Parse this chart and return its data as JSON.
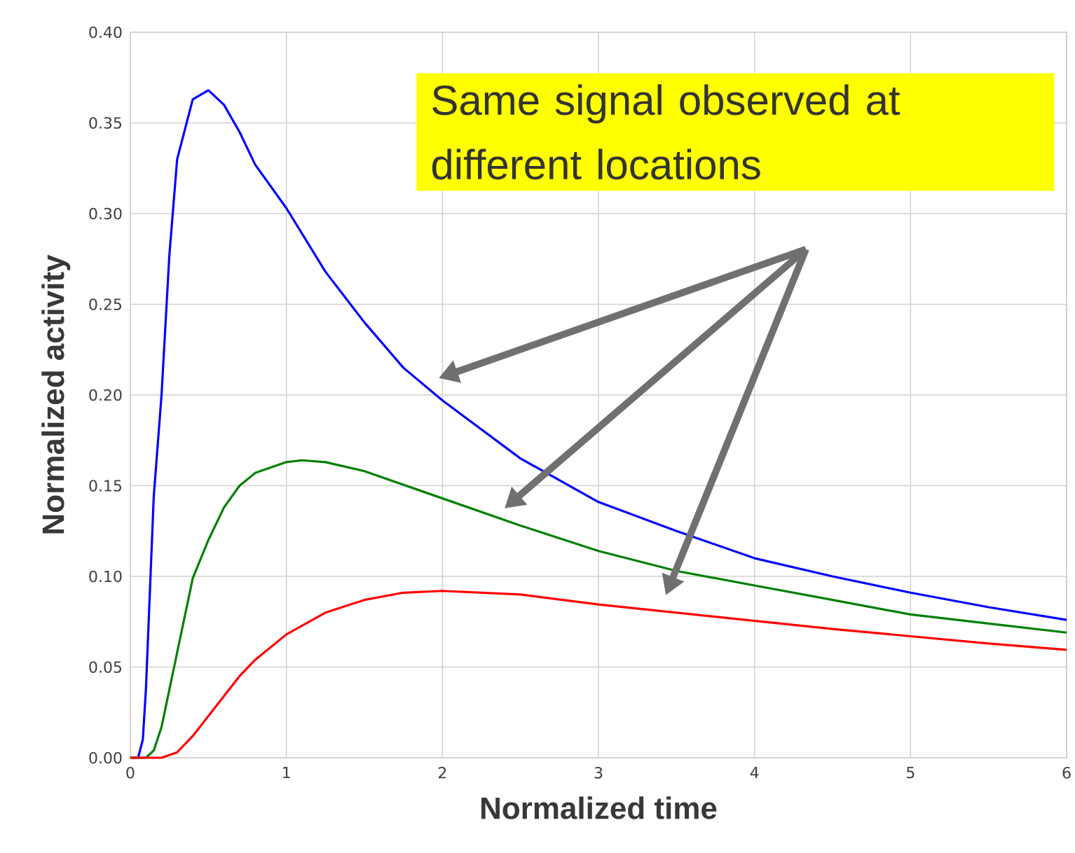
{
  "chart_data": {
    "type": "line",
    "xlabel": "Normalized time",
    "ylabel": "Normalized activity",
    "annotations": [
      "Same signal observed at different locations"
    ],
    "xlim": [
      0,
      6
    ],
    "ylim": [
      0,
      0.4
    ],
    "xticks": [
      0,
      1,
      2,
      3,
      4,
      5,
      6
    ],
    "yticks": [
      {
        "value": 0,
        "label": "0.00"
      },
      {
        "value": 0.05,
        "label": "0.05"
      },
      {
        "value": 0.1,
        "label": "0.10"
      },
      {
        "value": 0.15,
        "label": "0.15"
      },
      {
        "value": 0.2,
        "label": "0.20"
      },
      {
        "value": 0.25,
        "label": "0.25"
      },
      {
        "value": 0.3,
        "label": "0.30"
      },
      {
        "value": 0.35,
        "label": "0.35"
      },
      {
        "value": 0.4,
        "label": "0.40"
      }
    ],
    "grid": true,
    "marker": "none",
    "line_style": "solid",
    "series": [
      {
        "color": "#0000ff",
        "x": [
          0,
          0.05,
          0.08,
          0.1,
          0.15,
          0.2,
          0.25,
          0.3,
          0.4,
          0.5,
          0.6,
          0.7,
          0.8,
          1.0,
          1.25,
          1.5,
          1.75,
          2.0,
          2.5,
          3.0,
          3.5,
          4.0,
          4.5,
          5.0,
          5.5,
          6.0
        ],
        "values": [
          0,
          0,
          0.01,
          0.038,
          0.144,
          0.2,
          0.277,
          0.33,
          0.363,
          0.368,
          0.36,
          0.345,
          0.327,
          0.303,
          0.268,
          0.24,
          0.215,
          0.197,
          0.165,
          0.141,
          0.125,
          0.11,
          0.1,
          0.091,
          0.083,
          0.076
        ]
      },
      {
        "color": "#008000",
        "x": [
          0,
          0.1,
          0.15,
          0.2,
          0.3,
          0.4,
          0.5,
          0.6,
          0.7,
          0.8,
          1.0,
          1.1,
          1.25,
          1.5,
          2.0,
          2.5,
          3.0,
          3.5,
          4.0,
          4.5,
          5.0,
          5.5,
          6.0
        ],
        "values": [
          0,
          0,
          0.004,
          0.017,
          0.058,
          0.099,
          0.12,
          0.138,
          0.15,
          0.157,
          0.163,
          0.164,
          0.163,
          0.158,
          0.143,
          0.128,
          0.114,
          0.103,
          0.095,
          0.087,
          0.079,
          0.074,
          0.069
        ]
      },
      {
        "color": "#ff0000",
        "x": [
          0,
          0.2,
          0.3,
          0.4,
          0.5,
          0.6,
          0.7,
          0.8,
          1.0,
          1.25,
          1.5,
          1.75,
          2.0,
          2.5,
          3.0,
          3.5,
          4.0,
          4.5,
          5.0,
          5.5,
          6.0
        ],
        "values": [
          0,
          0,
          0.003,
          0.012,
          0.023,
          0.034,
          0.045,
          0.054,
          0.068,
          0.08,
          0.087,
          0.091,
          0.092,
          0.09,
          0.0845,
          0.08,
          0.0755,
          0.071,
          0.067,
          0.063,
          0.0595
        ]
      }
    ]
  }
}
